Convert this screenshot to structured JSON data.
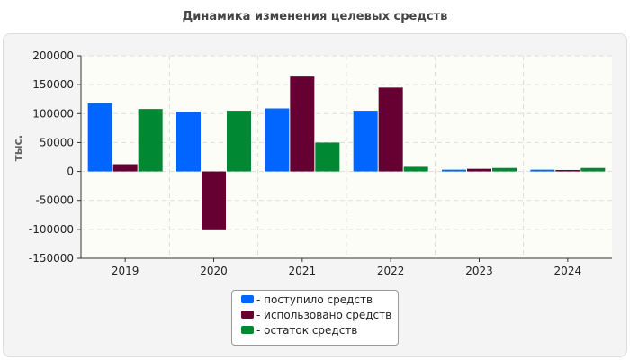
{
  "chart_data": {
    "type": "bar",
    "title": "Динамика изменения целевых средств",
    "ylabel": "тыс.",
    "xlabel": "",
    "categories": [
      "2019",
      "2020",
      "2021",
      "2022",
      "2023",
      "2024"
    ],
    "ylim": [
      -150000,
      200000
    ],
    "yticks": [
      200000,
      150000,
      100000,
      50000,
      0,
      -50000,
      -100000,
      -150000
    ],
    "grid": true,
    "legend_position": "bottom",
    "series": [
      {
        "name": "- поступило средств",
        "color": "#0066ff",
        "values": [
          118000,
          103000,
          109000,
          105000,
          3000,
          3000
        ]
      },
      {
        "name": "- использовано средств",
        "color": "#660033",
        "values": [
          12500,
          -101500,
          164000,
          145000,
          4500,
          2500
        ]
      },
      {
        "name": "- остаток средств",
        "color": "#008833",
        "values": [
          108000,
          105000,
          50000,
          8000,
          6000,
          6000
        ]
      }
    ]
  }
}
